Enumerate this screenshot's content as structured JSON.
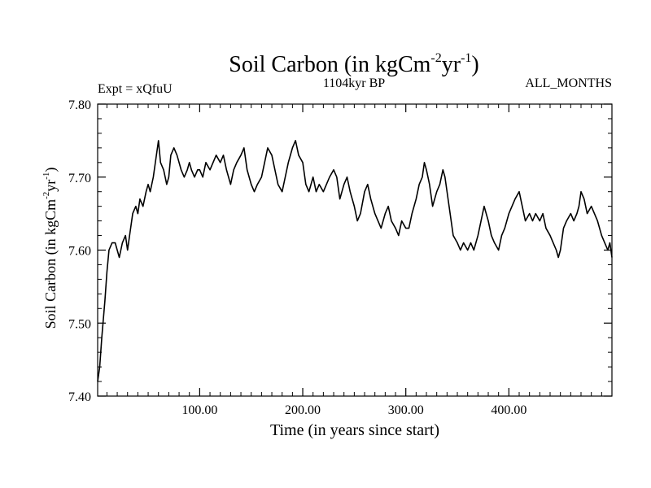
{
  "chart_data": {
    "type": "line",
    "title": "Soil Carbon (in kgCm",
    "title_sup1": "-2",
    "title_mid": "yr",
    "title_sup2": "-1",
    "title_end": ")",
    "subtitle_left": "Expt = xQfuU",
    "subtitle_center": "1104kyr BP",
    "subtitle_right": "ALL_MONTHS",
    "xlabel": "Time (in years since start)",
    "ylabel": "Soil Carbon (in kgCm",
    "ylabel_sup1": "-2",
    "ylabel_mid": "yr",
    "ylabel_sup2": "-1",
    "ylabel_end": ")",
    "xlim": [
      1,
      500
    ],
    "ylim": [
      7.4,
      7.8
    ],
    "xticks": [
      100,
      200,
      300,
      400
    ],
    "xtick_labels": [
      "100.00",
      "200.00",
      "300.00",
      "400.00"
    ],
    "yticks": [
      7.4,
      7.5,
      7.6,
      7.7,
      7.8
    ],
    "ytick_labels": [
      "7.40",
      "7.50",
      "7.60",
      "7.70",
      "7.80"
    ],
    "series": [
      {
        "name": "Soil Carbon",
        "color": "#000000",
        "x": [
          1,
          3,
          5,
          8,
          10,
          12,
          15,
          18,
          20,
          22,
          25,
          28,
          30,
          32,
          35,
          38,
          40,
          42,
          45,
          48,
          50,
          52,
          55,
          58,
          60,
          62,
          65,
          68,
          70,
          72,
          75,
          78,
          80,
          82,
          85,
          88,
          90,
          92,
          95,
          98,
          100,
          103,
          106,
          110,
          113,
          116,
          120,
          123,
          126,
          130,
          133,
          136,
          140,
          143,
          146,
          150,
          153,
          156,
          160,
          163,
          166,
          170,
          173,
          176,
          180,
          183,
          186,
          190,
          193,
          196,
          200,
          203,
          206,
          210,
          213,
          216,
          220,
          223,
          226,
          230,
          233,
          236,
          240,
          243,
          246,
          250,
          253,
          256,
          260,
          263,
          266,
          270,
          273,
          276,
          280,
          283,
          286,
          290,
          293,
          296,
          300,
          303,
          306,
          310,
          313,
          316,
          318,
          320,
          323,
          326,
          330,
          333,
          336,
          338,
          340,
          343,
          346,
          350,
          353,
          356,
          360,
          363,
          366,
          370,
          373,
          376,
          380,
          383,
          386,
          390,
          393,
          396,
          400,
          403,
          406,
          410,
          413,
          416,
          420,
          423,
          426,
          430,
          433,
          436,
          440,
          443,
          446,
          448,
          450,
          453,
          456,
          460,
          463,
          466,
          468,
          470,
          473,
          476,
          480,
          483,
          486,
          490,
          493,
          496,
          498,
          500
        ],
        "values": [
          7.42,
          7.44,
          7.48,
          7.53,
          7.57,
          7.6,
          7.61,
          7.61,
          7.6,
          7.59,
          7.61,
          7.62,
          7.6,
          7.62,
          7.65,
          7.66,
          7.65,
          7.67,
          7.66,
          7.68,
          7.69,
          7.68,
          7.7,
          7.73,
          7.75,
          7.72,
          7.71,
          7.69,
          7.7,
          7.73,
          7.74,
          7.73,
          7.72,
          7.71,
          7.7,
          7.71,
          7.72,
          7.71,
          7.7,
          7.71,
          7.71,
          7.7,
          7.72,
          7.71,
          7.72,
          7.73,
          7.72,
          7.73,
          7.71,
          7.69,
          7.71,
          7.72,
          7.73,
          7.74,
          7.71,
          7.69,
          7.68,
          7.69,
          7.7,
          7.72,
          7.74,
          7.73,
          7.71,
          7.69,
          7.68,
          7.7,
          7.72,
          7.74,
          7.75,
          7.73,
          7.72,
          7.69,
          7.68,
          7.7,
          7.68,
          7.69,
          7.68,
          7.69,
          7.7,
          7.71,
          7.7,
          7.67,
          7.69,
          7.7,
          7.68,
          7.66,
          7.64,
          7.65,
          7.68,
          7.69,
          7.67,
          7.65,
          7.64,
          7.63,
          7.65,
          7.66,
          7.64,
          7.63,
          7.62,
          7.64,
          7.63,
          7.63,
          7.65,
          7.67,
          7.69,
          7.7,
          7.72,
          7.71,
          7.69,
          7.66,
          7.68,
          7.69,
          7.71,
          7.7,
          7.68,
          7.65,
          7.62,
          7.61,
          7.6,
          7.61,
          7.6,
          7.61,
          7.6,
          7.62,
          7.64,
          7.66,
          7.64,
          7.62,
          7.61,
          7.6,
          7.62,
          7.63,
          7.65,
          7.66,
          7.67,
          7.68,
          7.66,
          7.64,
          7.65,
          7.64,
          7.65,
          7.64,
          7.65,
          7.63,
          7.62,
          7.61,
          7.6,
          7.59,
          7.6,
          7.63,
          7.64,
          7.65,
          7.64,
          7.65,
          7.66,
          7.68,
          7.67,
          7.65,
          7.66,
          7.65,
          7.64,
          7.62,
          7.61,
          7.6,
          7.61,
          7.59
        ]
      }
    ]
  }
}
